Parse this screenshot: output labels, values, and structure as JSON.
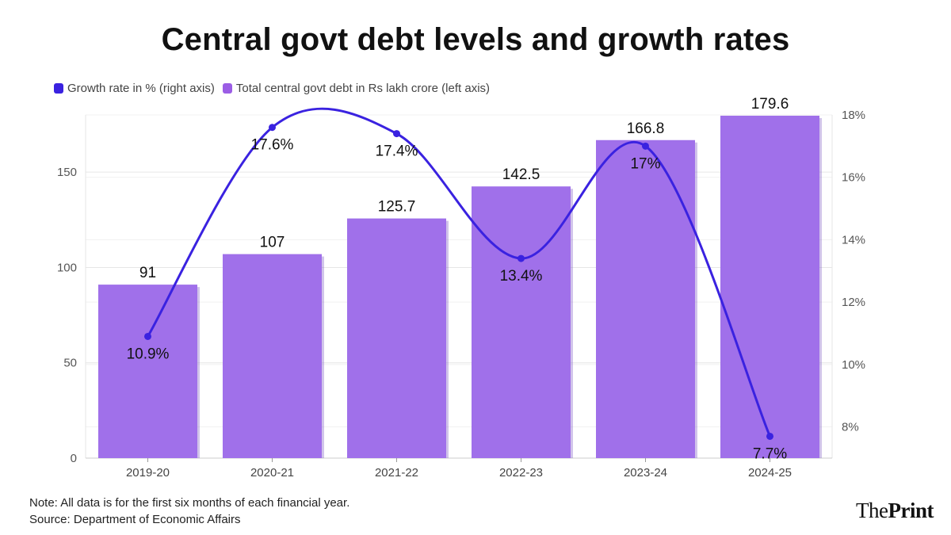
{
  "header": {
    "title": "Central govt debt levels and growth rates"
  },
  "legend": [
    {
      "label": "Growth rate in % (right axis)",
      "color": "#3a22e0"
    },
    {
      "label": "Total central govt debt in Rs lakh crore (left axis)",
      "color": "#9b5de5"
    }
  ],
  "chart_data": {
    "type": "bar",
    "title": "Central govt debt levels and growth rates",
    "categories": [
      "2019-20",
      "2020-21",
      "2021-22",
      "2022-23",
      "2023-24",
      "2024-25"
    ],
    "series": [
      {
        "name": "Total central govt debt in Rs lakh crore (left axis)",
        "type": "bar",
        "axis": "left",
        "values": [
          91,
          107,
          125.7,
          142.5,
          166.8,
          179.6
        ],
        "labels": [
          "91",
          "107",
          "125.7",
          "142.5",
          "166.8",
          "179.6"
        ],
        "color": "#a070ea"
      },
      {
        "name": "Growth rate in % (right axis)",
        "type": "line",
        "axis": "right",
        "values": [
          10.9,
          17.6,
          17.4,
          13.4,
          17,
          7.7
        ],
        "labels": [
          "10.9%",
          "17.6%",
          "17.4%",
          "13.4%",
          "17%",
          "7.7%"
        ],
        "color": "#3a22e0"
      }
    ],
    "y_left": {
      "ylim": [
        0,
        180
      ],
      "ticks": [
        0,
        50,
        100,
        150
      ],
      "tick_labels": [
        "0",
        "50",
        "100",
        "150"
      ]
    },
    "y_right": {
      "ylim": [
        7,
        18
      ],
      "ticks": [
        8,
        10,
        12,
        14,
        16,
        18
      ],
      "tick_labels": [
        "8%",
        "10%",
        "12%",
        "14%",
        "16%",
        "18%"
      ]
    },
    "grid": true,
    "legend_position": "top-left"
  },
  "footer": {
    "note": "Note: All data is for the first six months of each financial year.",
    "source": "Source: Department of Economic Affairs"
  },
  "brand": {
    "part1": "The",
    "part2": "Print"
  }
}
